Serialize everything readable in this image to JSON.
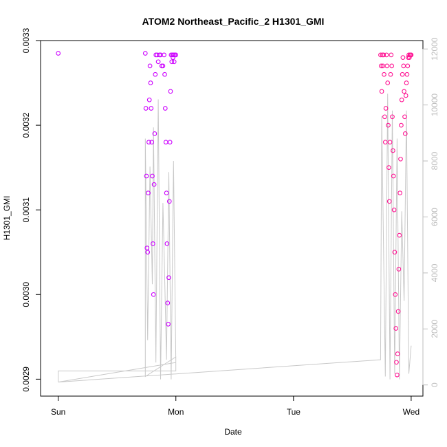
{
  "chart_data": {
    "type": "scatter",
    "title": "ATOM2 Northeast_Pacific_2 H1301_GMI",
    "xlabel": "Date",
    "ylabel": "H1301_GMI",
    "x_ticks": [
      "Sun",
      "Mon",
      "Tue",
      "Wed"
    ],
    "x_tick_positions_days": [
      0,
      1,
      2,
      3
    ],
    "xlim_days": [
      -0.15,
      3.1
    ],
    "ylim": [
      0.00288,
      0.0033
    ],
    "y_ticks": [
      0.0029,
      0.003,
      0.0031,
      0.0032,
      0.0033
    ],
    "y_tick_labels": [
      "0.0029",
      "0.0030",
      "0.0031",
      "0.0032",
      "0.0033"
    ],
    "y2_ticks": [
      0,
      2000,
      4000,
      6000,
      8000,
      10000,
      12000
    ],
    "y2_tick_labels": [
      "0",
      "2000",
      "4000",
      "6000",
      "8000",
      "10000",
      "12000"
    ],
    "y2lim": [
      -400,
      12300
    ],
    "colors": {
      "magenta": "#cc00ff",
      "pink": "#ff1493",
      "altitude_line": "#c8c8c8",
      "axis": "#000000",
      "right_axis": "#bdbdbd"
    },
    "series": [
      {
        "kind": "points",
        "color": "#cc00ff",
        "x": [
          0.0,
          0.74,
          0.745,
          0.75,
          0.755,
          0.76,
          0.765,
          0.77,
          0.775,
          0.78,
          0.785,
          0.79,
          0.795,
          0.8,
          0.805,
          0.81,
          0.815,
          0.82,
          0.825,
          0.83,
          0.84,
          0.85,
          0.86,
          0.87,
          0.88,
          0.89,
          0.9,
          0.905,
          0.91,
          0.915,
          0.92,
          0.925,
          0.93,
          0.935,
          0.94,
          0.945,
          0.95,
          0.955,
          0.96,
          0.965,
          0.97,
          0.975,
          0.98,
          0.985,
          0.99,
          1.0
        ],
        "y": [
          0.003285,
          0.003285,
          0.00322,
          0.00314,
          0.003055,
          0.00305,
          0.00312,
          0.00318,
          0.00323,
          0.00327,
          0.00325,
          0.00322,
          0.00318,
          0.00314,
          0.00306,
          0.003,
          0.00313,
          0.00319,
          0.00326,
          0.003283,
          0.003283,
          0.003275,
          0.003283,
          0.003283,
          0.00327,
          0.00327,
          0.003283,
          0.00326,
          0.00322,
          0.00318,
          0.00312,
          0.00306,
          0.00299,
          0.002965,
          0.00302,
          0.00311,
          0.00318,
          0.00324,
          0.003283,
          0.003275,
          0.003283,
          0.00328,
          0.003283,
          0.003275,
          0.003283,
          0.003283
        ]
      },
      {
        "kind": "points",
        "color": "#ff1493",
        "x": [
          2.74,
          2.745,
          2.75,
          2.755,
          2.76,
          2.765,
          2.77,
          2.775,
          2.78,
          2.785,
          2.79,
          2.795,
          2.8,
          2.805,
          2.81,
          2.815,
          2.82,
          2.825,
          2.83,
          2.835,
          2.84,
          2.845,
          2.85,
          2.855,
          2.86,
          2.865,
          2.87,
          2.875,
          2.88,
          2.885,
          2.89,
          2.895,
          2.9,
          2.905,
          2.91,
          2.915,
          2.92,
          2.925,
          2.93,
          2.935,
          2.94,
          2.945,
          2.95,
          2.955,
          2.96,
          2.965,
          2.97,
          2.975,
          2.98,
          2.985,
          2.99,
          2.995,
          3.0
        ],
        "y": [
          0.003283,
          0.00327,
          0.00324,
          0.003283,
          0.00327,
          0.003283,
          0.00326,
          0.00321,
          0.00318,
          0.00322,
          0.003283,
          0.00327,
          0.00325,
          0.0032,
          0.00315,
          0.00311,
          0.00318,
          0.00326,
          0.003283,
          0.00327,
          0.00321,
          0.00317,
          0.00314,
          0.0031,
          0.00305,
          0.003,
          0.00296,
          0.00292,
          0.002905,
          0.00293,
          0.00298,
          0.00303,
          0.00307,
          0.00312,
          0.00316,
          0.0032,
          0.00323,
          0.00326,
          0.00328,
          0.00327,
          0.00324,
          0.00321,
          0.00319,
          0.003235,
          0.00325,
          0.00326,
          0.00327,
          0.00328,
          0.003283,
          0.00328,
          0.003283,
          0.003283,
          0.003283
        ]
      },
      {
        "kind": "altitude-line",
        "color": "#c8c8c8",
        "x": [
          0.0,
          0.0,
          1.0,
          1.0,
          0.74,
          0.74,
          0.76,
          0.78,
          0.8,
          0.81,
          0.83,
          0.85,
          0.87,
          0.89,
          0.9,
          0.92,
          0.94,
          0.96,
          0.98,
          1.0,
          0.0,
          2.74,
          2.75,
          2.78,
          2.8,
          2.82,
          2.84,
          2.86,
          2.88,
          2.9,
          2.92,
          2.94,
          2.96,
          2.98,
          3.0
        ],
        "y2": [
          100,
          500,
          500,
          1000,
          300,
          8800,
          1600,
          7800,
          3600,
          9200,
          800,
          10200,
          200,
          6500,
          4800,
          900,
          7600,
          200,
          8000,
          800,
          100,
          900,
          9600,
          300,
          10400,
          200,
          9800,
          400,
          8800,
          200,
          6200,
          3000,
          9800,
          400,
          1400
        ]
      }
    ]
  }
}
